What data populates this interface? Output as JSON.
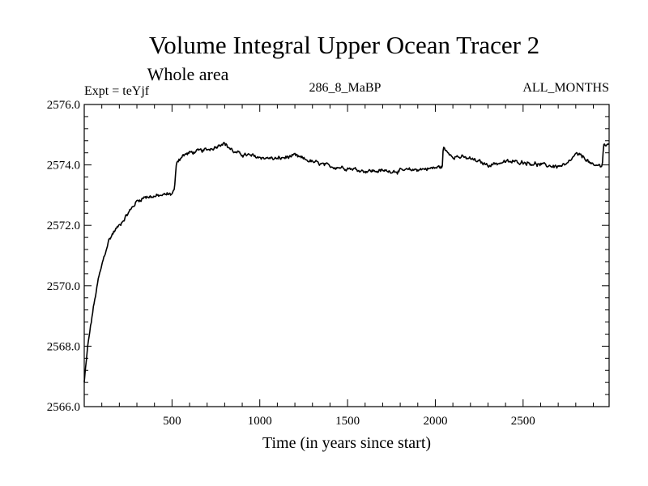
{
  "chart_data": {
    "type": "line",
    "title": "Volume Integral Upper Ocean Tracer 2",
    "subtitle": "Whole area",
    "left_label": "Expt = teYjf",
    "center_label": "286_8_MaBP",
    "right_label": "ALL_MONTHS",
    "xlabel": "Time (in years since start)",
    "ylabel": "",
    "xlim": [
      0,
      2990
    ],
    "ylim": [
      2566.0,
      2576.0
    ],
    "x_ticks": [
      500,
      1000,
      1500,
      2000,
      2500
    ],
    "x_tick_labels": [
      "500",
      "1000",
      "1500",
      "2000",
      "2500"
    ],
    "y_ticks": [
      2566.0,
      2568.0,
      2570.0,
      2572.0,
      2574.0,
      2576.0
    ],
    "y_tick_labels": [
      "2566.0",
      "2568.0",
      "2570.0",
      "2572.0",
      "2574.0",
      "2576.0"
    ],
    "grid": false,
    "series": [
      {
        "name": "Volume Integral Upper Ocean Tracer 2",
        "color": "#000000",
        "noise": 0.09,
        "x": [
          0,
          20,
          50,
          80,
          110,
          140,
          170,
          200,
          250,
          300,
          350,
          400,
          450,
          500,
          515,
          525,
          560,
          600,
          650,
          700,
          750,
          790,
          820,
          860,
          900,
          1000,
          1100,
          1200,
          1300,
          1400,
          1500,
          1600,
          1700,
          1800,
          1900,
          2000,
          2040,
          2045,
          2060,
          2100,
          2200,
          2300,
          2400,
          2500,
          2600,
          2700,
          2750,
          2800,
          2850,
          2900,
          2950,
          2960,
          2970,
          2990
        ],
        "y": [
          2566.8,
          2568.0,
          2569.2,
          2570.2,
          2570.9,
          2571.5,
          2571.8,
          2572.0,
          2572.4,
          2572.8,
          2572.95,
          2572.95,
          2573.0,
          2573.05,
          2573.2,
          2574.1,
          2574.3,
          2574.4,
          2574.45,
          2574.5,
          2574.6,
          2574.75,
          2574.6,
          2574.4,
          2574.35,
          2574.25,
          2574.2,
          2574.3,
          2574.1,
          2573.95,
          2573.9,
          2573.8,
          2573.8,
          2573.8,
          2573.85,
          2573.9,
          2573.95,
          2574.6,
          2574.45,
          2574.3,
          2574.2,
          2574.0,
          2574.1,
          2574.1,
          2574.0,
          2573.95,
          2574.0,
          2574.35,
          2574.25,
          2573.95,
          2574.0,
          2574.7,
          2574.65,
          2574.65
        ]
      }
    ]
  }
}
